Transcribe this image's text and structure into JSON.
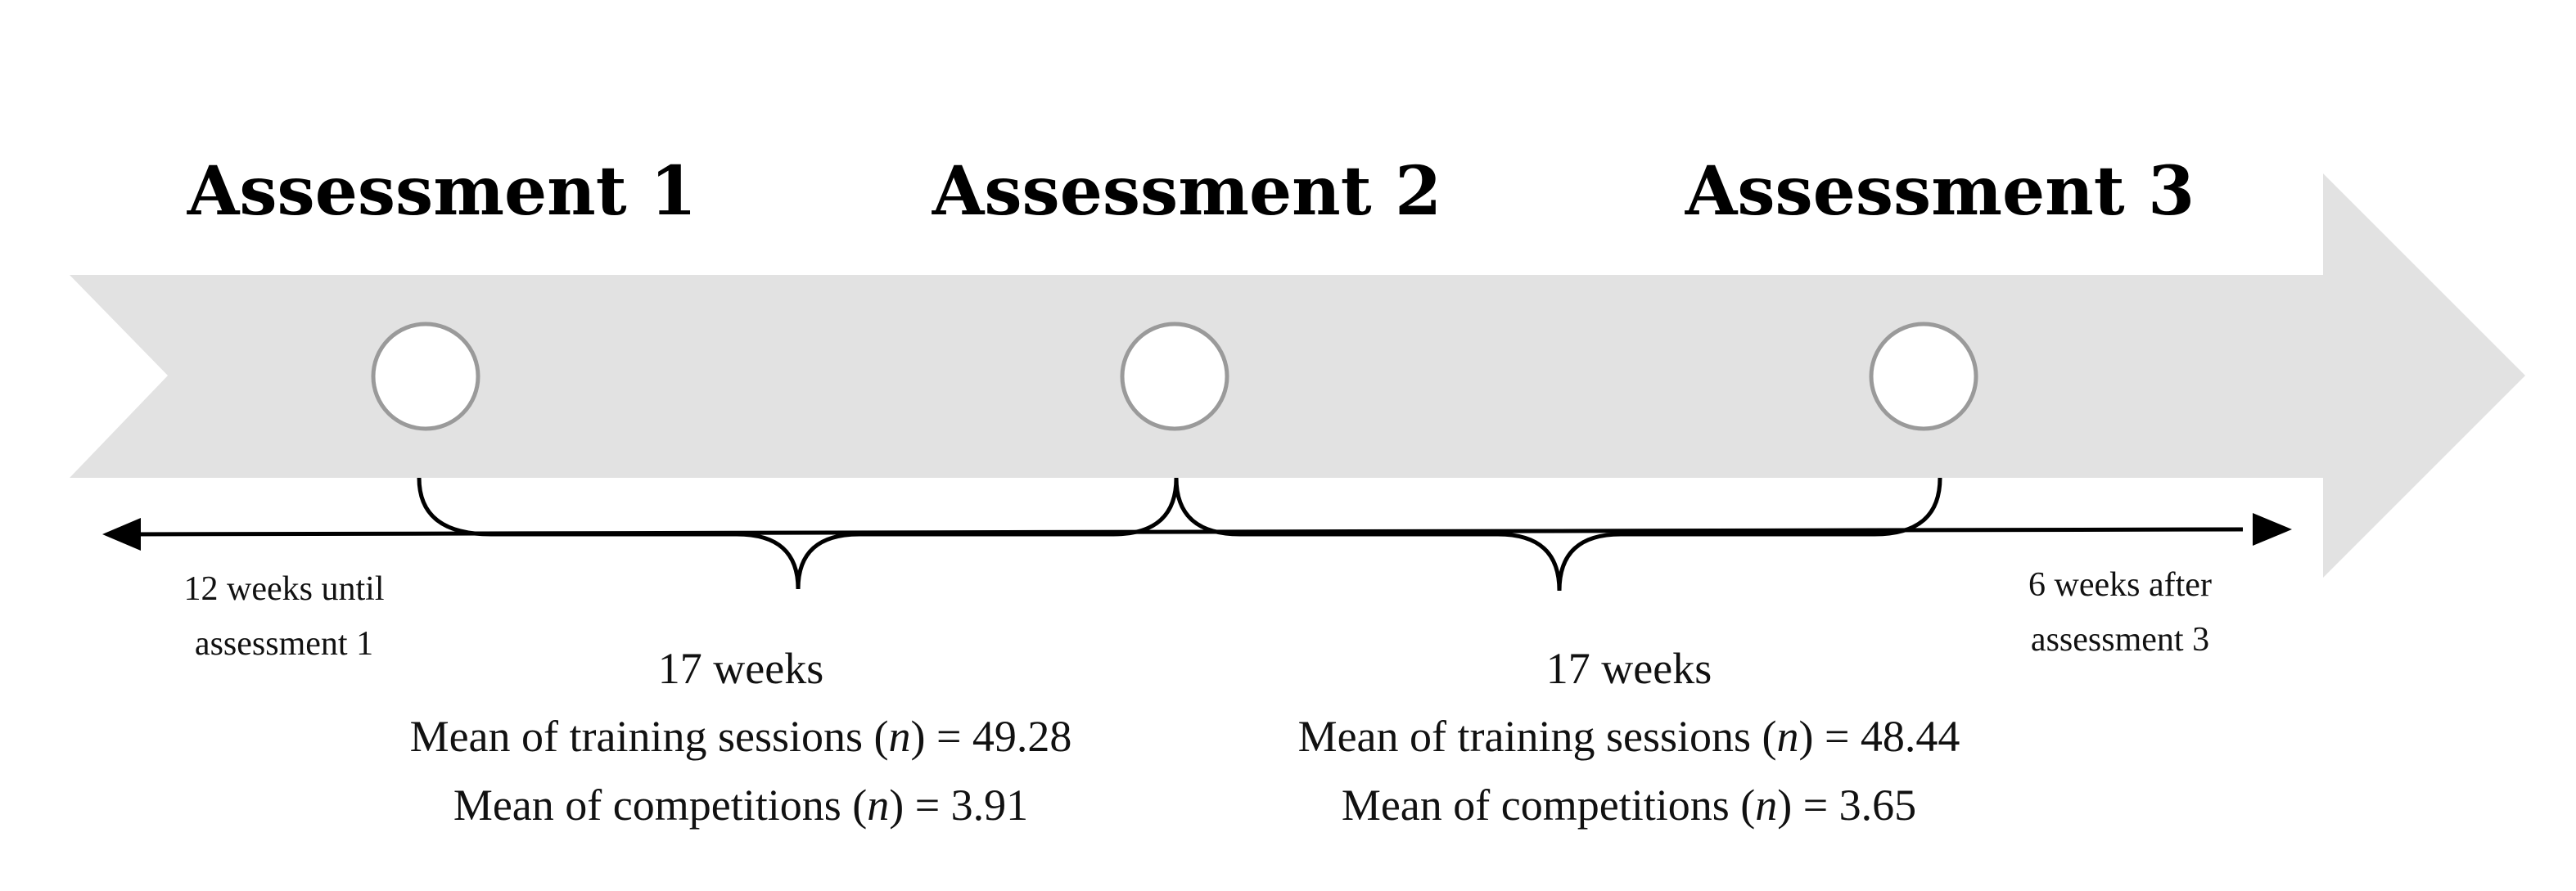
{
  "assessments": [
    {
      "title": "Assessment 1"
    },
    {
      "title": "Assessment 2"
    },
    {
      "title": "Assessment 3"
    }
  ],
  "notes": {
    "before_line1": "12 weeks until",
    "before_line2": "assessment 1",
    "after_line1": "6 weeks after",
    "after_line2": "assessment 3"
  },
  "periods": [
    {
      "duration": "17 weeks",
      "training_prefix": "Mean of training sessions (",
      "n_symbol": "n",
      "training_suffix": ") = 49.28",
      "competitions_prefix": "Mean of competitions (",
      "competitions_suffix": ") = 3.91"
    },
    {
      "duration": "17 weeks",
      "training_prefix": "Mean of training sessions (",
      "n_symbol": "n",
      "training_suffix": ") = 48.44",
      "competitions_prefix": "Mean of competitions (",
      "competitions_suffix": ") = 3.65"
    }
  ],
  "colors": {
    "arrow_fill": "#e2e2e2",
    "circle_stroke": "#9a9a9a",
    "line": "#000000"
  }
}
